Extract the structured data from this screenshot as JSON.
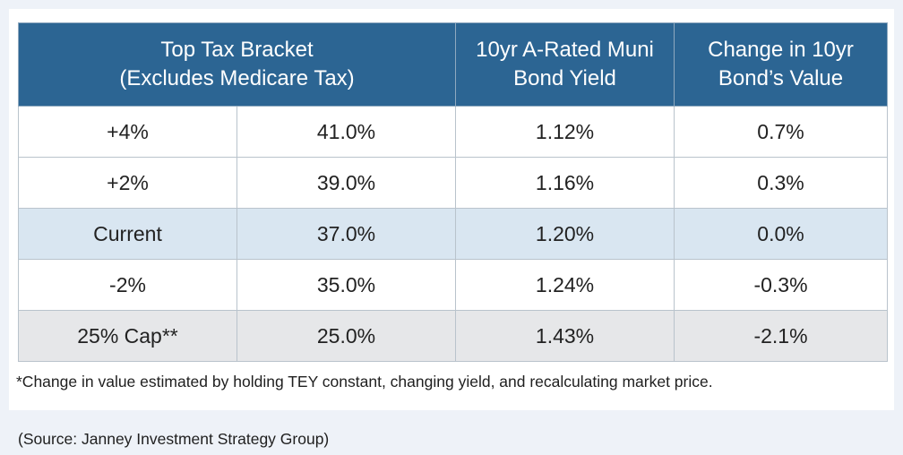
{
  "chart_data": {
    "type": "table",
    "headers": [
      {
        "line1": "Top Tax Bracket",
        "line2": "(Excludes Medicare Tax)"
      },
      {
        "line1": "10yr A-Rated Muni",
        "line2": "Bond Yield"
      },
      {
        "line1": "Change in 10yr",
        "line2": "Bond’s Value"
      }
    ],
    "rows": [
      {
        "scenario": "+4%",
        "rate": "41.0%",
        "yield": "1.12%",
        "change": "0.7%"
      },
      {
        "scenario": "+2%",
        "rate": "39.0%",
        "yield": "1.16%",
        "change": "0.3%"
      },
      {
        "scenario": "Current",
        "rate": "37.0%",
        "yield": "1.20%",
        "change": "0.0%"
      },
      {
        "scenario": "-2%",
        "rate": "35.0%",
        "yield": "1.24%",
        "change": "-0.3%"
      },
      {
        "scenario": "25% Cap**",
        "rate": "25.0%",
        "yield": "1.43%",
        "change": "-2.1%"
      }
    ]
  },
  "footnote": "*Change in value estimated by holding TEY constant, changing yield, and recalculating market price.",
  "source": "(Source: Janney Investment Strategy Group)",
  "colors": {
    "header_bg": "#2c6593",
    "current_row_bg": "#d9e6f1",
    "cap_row_bg": "#e6e7e9",
    "page_bg": "#eef2f8"
  }
}
